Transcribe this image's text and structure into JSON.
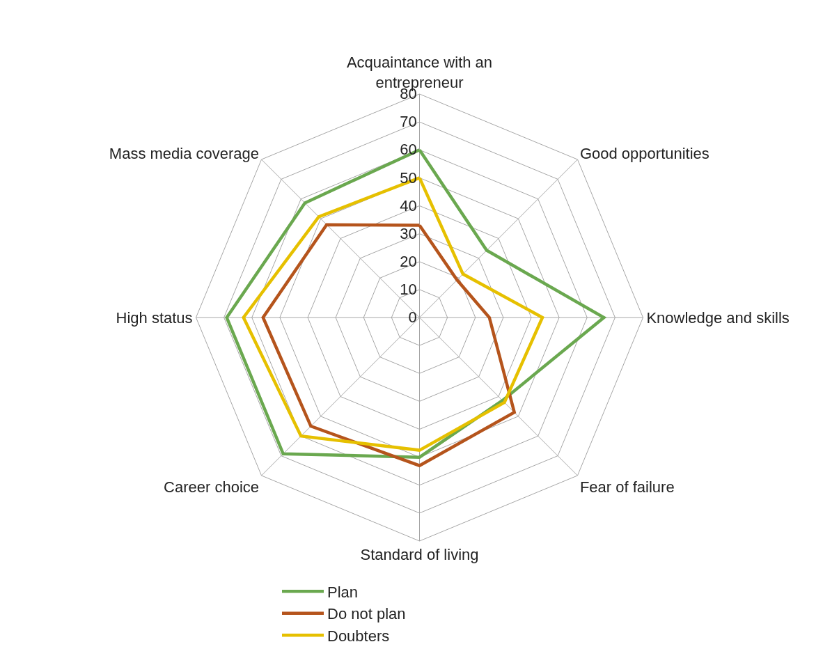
{
  "chart_data": {
    "type": "radar",
    "categories": [
      "Acquaintance with an entrepreneur",
      "Good opportunities",
      "Knowledge and skills",
      "Fear of failure",
      "Standard of living",
      "Career choice",
      "High status",
      "Mass media coverage"
    ],
    "series": [
      {
        "name": "Plan",
        "color": "#6aa84f",
        "values": [
          60,
          34,
          66,
          42,
          50,
          69,
          69,
          58
        ]
      },
      {
        "name": "Do not plan",
        "color": "#b5541c",
        "values": [
          33,
          19,
          25,
          48,
          53,
          55,
          56,
          47
        ]
      },
      {
        "name": "Doubters",
        "color": "#e6c000",
        "values": [
          50,
          22,
          44,
          43,
          47.5,
          60,
          63,
          51
        ]
      }
    ],
    "ylim": [
      0,
      80
    ],
    "yticks": [
      0,
      10,
      20,
      30,
      40,
      50,
      60,
      70,
      80
    ],
    "grid": true,
    "legend": "bottom",
    "marker": "none",
    "line_style": "solid"
  }
}
